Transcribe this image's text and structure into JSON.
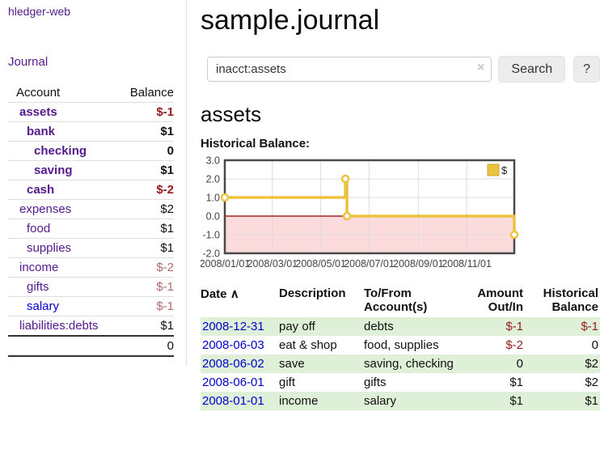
{
  "sidebar": {
    "app_title": "hledger-web",
    "journal_link": "Journal",
    "accounts_header": {
      "account": "Account",
      "balance": "Balance"
    },
    "accounts": [
      {
        "name": "assets",
        "balance": "$-1",
        "depth": 1,
        "bold": true,
        "neg": "strong",
        "link": "purple"
      },
      {
        "name": "bank",
        "balance": "$1",
        "depth": 2,
        "bold": true,
        "neg": null,
        "link": "purple"
      },
      {
        "name": "checking",
        "balance": "0",
        "depth": 3,
        "bold": true,
        "neg": null,
        "link": "purple"
      },
      {
        "name": "saving",
        "balance": "$1",
        "depth": 3,
        "bold": true,
        "neg": null,
        "link": "purple"
      },
      {
        "name": "cash",
        "balance": "$-2",
        "depth": 2,
        "bold": true,
        "neg": "strong",
        "link": "purple"
      },
      {
        "name": "expenses",
        "balance": "$2",
        "depth": 1,
        "bold": false,
        "neg": null,
        "link": "purple"
      },
      {
        "name": "food",
        "balance": "$1",
        "depth": 2,
        "bold": false,
        "neg": null,
        "link": "purple"
      },
      {
        "name": "supplies",
        "balance": "$1",
        "depth": 2,
        "bold": false,
        "neg": null,
        "link": "purple"
      },
      {
        "name": "income",
        "balance": "$-2",
        "depth": 1,
        "bold": false,
        "neg": "soft",
        "link": "purple"
      },
      {
        "name": "gifts",
        "balance": "$-1",
        "depth": 2,
        "bold": false,
        "neg": "soft",
        "link": "purple"
      },
      {
        "name": "salary",
        "balance": "$-1",
        "depth": 2,
        "bold": false,
        "neg": "soft",
        "link": "blue"
      },
      {
        "name": "liabilities:debts",
        "balance": "$1",
        "depth": 1,
        "bold": false,
        "neg": null,
        "link": "purple"
      }
    ],
    "total": "0"
  },
  "main": {
    "title": "sample.journal",
    "search": {
      "value": "inacct:assets",
      "clear_icon": "×",
      "button_label": "Search",
      "help_label": "?"
    },
    "account_heading": "assets",
    "chart_label": "Historical Balance:"
  },
  "chart_data": {
    "type": "line",
    "title": "Historical Balance",
    "steps": true,
    "series": [
      {
        "name": "$",
        "color": "#edc240",
        "points": [
          [
            "2008-01-01",
            1
          ],
          [
            "2008-06-01",
            2
          ],
          [
            "2008-06-03",
            0
          ],
          [
            "2008-12-31",
            -1
          ]
        ]
      }
    ],
    "x_ticks": [
      "2008/01/01",
      "2008/03/01",
      "2008/05/01",
      "2008/07/01",
      "2008/09/01",
      "2008/11/01"
    ],
    "y_ticks": [
      3.0,
      2.0,
      1.0,
      0.0,
      -1.0,
      -2.0
    ],
    "xlim": [
      "2008-01-01",
      "2008-12-31"
    ],
    "ylim": [
      -2,
      3
    ],
    "legend_position": "top-right",
    "grid": true,
    "zero_line_color": "#8b0000",
    "negative_region_color": "#fbdbdb",
    "border_color": "#4a4a4a"
  },
  "register": {
    "sort_arrow": "∧",
    "headers": {
      "date": "Date",
      "description": "Description",
      "accounts": "To/From Account(s)",
      "amount": "Amount Out/In",
      "balance": "Historical Balance"
    },
    "rows": [
      {
        "date": "2008-12-31",
        "description": "pay off",
        "accounts": "debts",
        "amount": "$-1",
        "amount_neg": true,
        "balance": "$-1",
        "balance_neg": true
      },
      {
        "date": "2008-06-03",
        "description": "eat & shop",
        "accounts": "food, supplies",
        "amount": "$-2",
        "amount_neg": true,
        "balance": "0",
        "balance_neg": false
      },
      {
        "date": "2008-06-02",
        "description": "save",
        "accounts": "saving, checking",
        "amount": "0",
        "amount_neg": false,
        "balance": "$2",
        "balance_neg": false
      },
      {
        "date": "2008-06-01",
        "description": "gift",
        "accounts": "gifts",
        "amount": "$1",
        "amount_neg": false,
        "balance": "$2",
        "balance_neg": false
      },
      {
        "date": "2008-01-01",
        "description": "income",
        "accounts": "salary",
        "amount": "$1",
        "amount_neg": false,
        "balance": "$1",
        "balance_neg": false
      }
    ]
  }
}
